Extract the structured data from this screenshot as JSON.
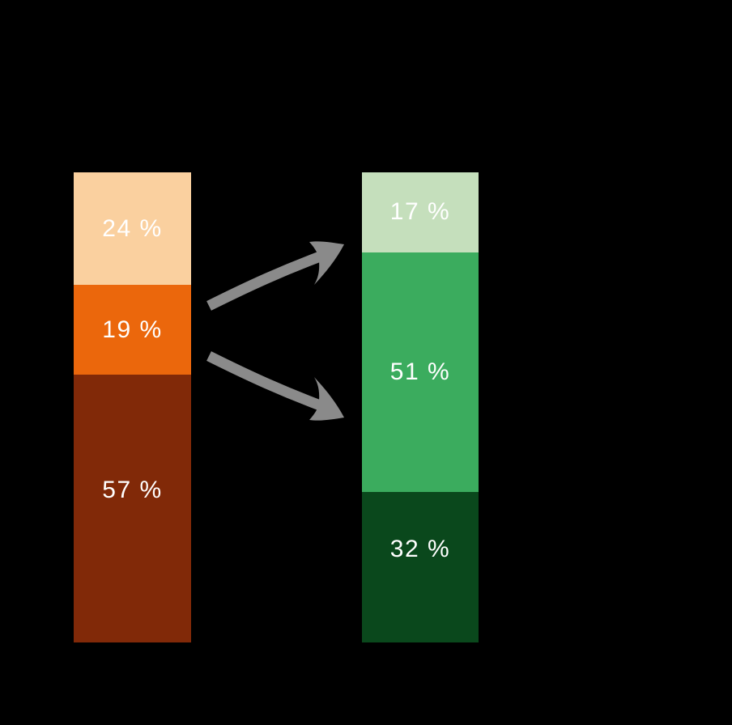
{
  "background_color": "#000000",
  "label_text_color": "#ffffff",
  "arrow_color": "#8A8A8A",
  "chart_data": {
    "type": "bar",
    "subtype": "stacked-percentage-columns",
    "title": "",
    "xlabel": "",
    "ylabel": "",
    "legend": [],
    "axes_visible": false,
    "grid": false,
    "bars": [
      {
        "name": "left-bar",
        "palette": "orange-brown",
        "segments": [
          {
            "label": "24 %",
            "value": 24,
            "color": "#FAD09F"
          },
          {
            "label": "19 %",
            "value": 19,
            "color": "#EB670C"
          },
          {
            "label": "57 %",
            "value": 57,
            "color": "#812908"
          }
        ]
      },
      {
        "name": "right-bar",
        "palette": "green",
        "segments": [
          {
            "label": "17 %",
            "value": 17,
            "color": "#C5DFBC"
          },
          {
            "label": "51 %",
            "value": 51,
            "color": "#3BAC5E"
          },
          {
            "label": "32 %",
            "value": 32,
            "color": "#0A481C"
          }
        ]
      }
    ],
    "annotations": [
      {
        "name": "arrow-upper",
        "shape": "curved-arrow",
        "from": "left-bar middle segment (19 %)",
        "to": "right-bar top",
        "color": "#8A8A8A"
      },
      {
        "name": "arrow-lower",
        "shape": "curved-arrow",
        "from": "left-bar middle segment (19 %)",
        "to": "right-bar middle",
        "color": "#8A8A8A"
      }
    ]
  }
}
